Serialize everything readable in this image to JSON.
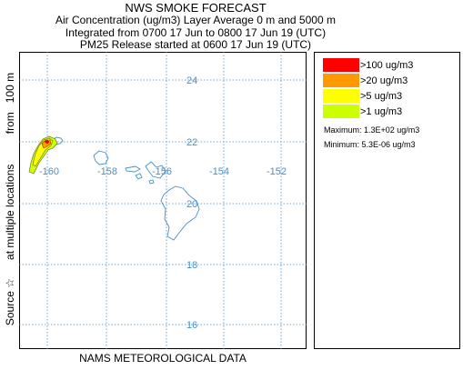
{
  "header": {
    "title": "NWS SMOKE FORECAST",
    "line1": "Air Concentration (ug/m3) Layer Average    0 m  and  5000 m",
    "line2": "Integrated from 0700 17 Jun to 0800 17 Jun 19 (UTC)",
    "line3": "PM25 Release started at 0600 17 Jun 19 (UTC)"
  },
  "side_label": {
    "source": "Source ☆",
    "locations": "at multiple locations",
    "height": "from   100 m"
  },
  "footer": "NAMS METEOROLOGICAL DATA",
  "map": {
    "grid_color": "#4a90c8",
    "coast_color": "#4a90c8",
    "lat_labels": [
      "24",
      "22",
      "20",
      "18",
      "16"
    ],
    "lon_labels": [
      "-160",
      "-158",
      "-156",
      "-154",
      "-152"
    ]
  },
  "legend": {
    "items": [
      {
        "label": ">100 ug/m3",
        "color": "#ff0000"
      },
      {
        "label": ">20 ug/m3",
        "color": "#ff9900"
      },
      {
        "label": ">5 ug/m3",
        "color": "#ffff00"
      },
      {
        "label": ">1 ug/m3",
        "color": "#ccff00"
      }
    ],
    "maximum": "Maximum: 1.3E+02 ug/m3",
    "minimum": "Minimum: 5.3E-06 ug/m3"
  }
}
